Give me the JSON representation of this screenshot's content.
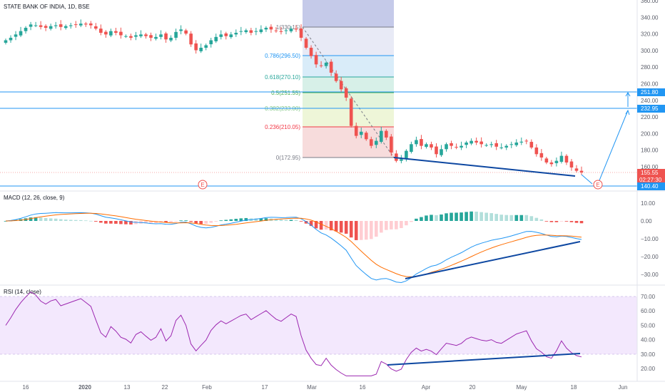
{
  "colors": {
    "up": "#26a69a",
    "down": "#ef5350",
    "macd_line": "#2196f3",
    "signal_line": "#ff6d00",
    "rsi_line": "#9c27b0",
    "rsi_band": "#e9d7fb",
    "trend": "#0d47a1",
    "hline": "#2196f3",
    "axis": "#5d606b",
    "grid": "#f0f3fa"
  },
  "price_pane": {
    "title": "STATE BANK OF INDIA, 1D, BSE",
    "y_ticks": [
      "360.00",
      "340.00",
      "320.00",
      "300.00",
      "280.00",
      "260.00",
      "240.00",
      "220.00",
      "200.00",
      "180.00",
      "160.00"
    ],
    "tags": {
      "last_price": "155.55",
      "countdown": "02:27:30",
      "target_1": "251.80",
      "target_2": "232.95",
      "support": "140.40"
    },
    "event_marker": "E"
  },
  "fibonacci": [
    {
      "label": "1(330.15)",
      "color": "#787b86"
    },
    {
      "label": "0.786(296.50)",
      "color": "#2196f3"
    },
    {
      "label": "0.618(270.10)",
      "color": "#26a69a"
    },
    {
      "label": "0.5(251.55)",
      "color": "#4caf50"
    },
    {
      "label": "0.382(233.00)",
      "color": "#81c784"
    },
    {
      "label": "0.236(210.05)",
      "color": "#f23645"
    },
    {
      "label": "0(172.95)",
      "color": "#787b86"
    }
  ],
  "macd_pane": {
    "title": "MACD (12, 26, close, 9)",
    "y_ticks": [
      "10.00",
      "0.00",
      "−10.00",
      "−20.00",
      "−30.00"
    ]
  },
  "rsi_pane": {
    "title": "RSI (14, close)",
    "y_ticks": [
      "70.00",
      "60.00",
      "50.00",
      "40.00",
      "30.00",
      "20.00"
    ]
  },
  "x_axis": {
    "ticks": [
      "16",
      "2020",
      "13",
      "22",
      "Feb",
      "17",
      "Mar",
      "16",
      "Apr",
      "20",
      "May",
      "18",
      "Jun"
    ]
  },
  "chart_data": {
    "type": "candlestick",
    "title": "STATE BANK OF INDIA, 1D, BSE",
    "ylim": [
      140,
      360
    ],
    "close_series": [
      315,
      318,
      322,
      326,
      330,
      334,
      333,
      331,
      330,
      332,
      333,
      331,
      332,
      333,
      334,
      335,
      334,
      333,
      329,
      324,
      322,
      326,
      324,
      321,
      320,
      318,
      321,
      322,
      320,
      318,
      319,
      322,
      316,
      318,
      325,
      328,
      323,
      310,
      303,
      306,
      309,
      315,
      319,
      322,
      320,
      322,
      324,
      326,
      327,
      324,
      326,
      328,
      330,
      328,
      326,
      325,
      327,
      329,
      328,
      318,
      306,
      296,
      286,
      284,
      288,
      276,
      266,
      256,
      246,
      212,
      200,
      205,
      196,
      188,
      194,
      206,
      198,
      180,
      170,
      172,
      182,
      190,
      195,
      188,
      190,
      186,
      178,
      184,
      190,
      188,
      186,
      188,
      192,
      194,
      192,
      190,
      189,
      190,
      187,
      186,
      188,
      190,
      192,
      193,
      194,
      186,
      178,
      174,
      168,
      166,
      170,
      176,
      168,
      162,
      158,
      156
    ]
  }
}
